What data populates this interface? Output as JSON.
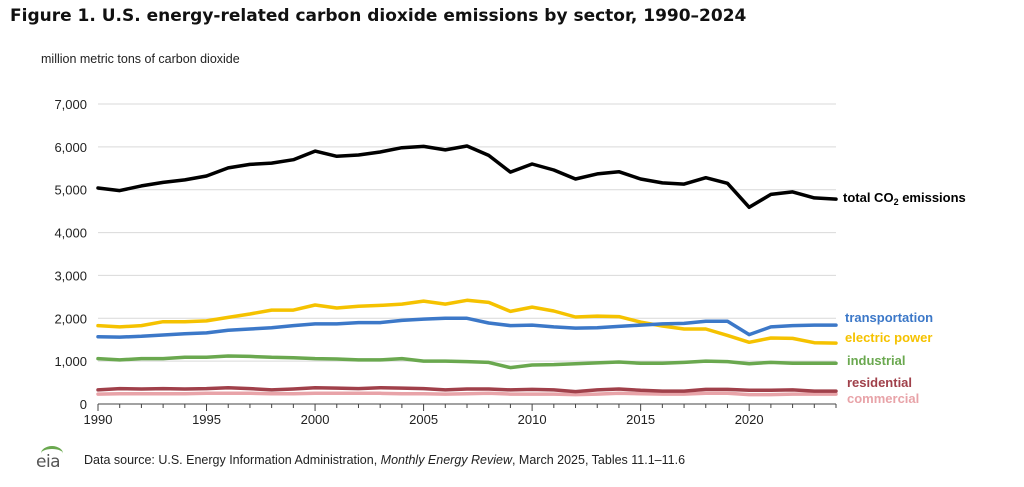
{
  "title": "Figure 1. U.S. energy-related carbon dioxide emissions by sector, 1990–2024",
  "unit_label": "million metric tons of carbon dioxide",
  "source": {
    "prefix": "Data source: U.S. Energy Information Administration, ",
    "publication": "Monthly Energy Review",
    "suffix": ", March 2025, Tables 11.1–11.6"
  },
  "logo_text": "eia",
  "chart_data": {
    "type": "line",
    "title": "Figure 1. U.S. energy-related carbon dioxide emissions by sector, 1990–2024",
    "xlabel": "",
    "ylabel": "million metric tons of carbon dioxide",
    "xlim": [
      1990,
      2024
    ],
    "ylim": [
      0,
      7000
    ],
    "x_ticks": [
      "1990",
      "1995",
      "2000",
      "2005",
      "2010",
      "2015",
      "2020"
    ],
    "x_tick_values": [
      1990,
      1995,
      2000,
      2005,
      2010,
      2015,
      2020
    ],
    "y_ticks": [
      "0",
      "1,000",
      "2,000",
      "3,000",
      "4,000",
      "5,000",
      "6,000",
      "7,000"
    ],
    "y_tick_values": [
      0,
      1000,
      2000,
      3000,
      4000,
      5000,
      6000,
      7000
    ],
    "grid": "horizontal",
    "legend": "inline-right",
    "x": [
      1990,
      1991,
      1992,
      1993,
      1994,
      1995,
      1996,
      1997,
      1998,
      1999,
      2000,
      2001,
      2002,
      2003,
      2004,
      2005,
      2006,
      2007,
      2008,
      2009,
      2010,
      2011,
      2012,
      2013,
      2014,
      2015,
      2016,
      2017,
      2018,
      2019,
      2020,
      2021,
      2022,
      2023,
      2024
    ],
    "series": [
      {
        "name": "total CO",
        "name_sub": "2",
        "name_suffix": " emissions",
        "color": "#000000",
        "values": [
          5040,
          4980,
          5090,
          5170,
          5230,
          5320,
          5510,
          5590,
          5620,
          5700,
          5900,
          5780,
          5810,
          5880,
          5980,
          6010,
          5930,
          6020,
          5800,
          5410,
          5600,
          5460,
          5250,
          5370,
          5420,
          5250,
          5160,
          5130,
          5280,
          5150,
          4590,
          4890,
          4950,
          4810,
          4780
        ]
      },
      {
        "name": "transportation",
        "color": "#3c78c8",
        "values": [
          1570,
          1560,
          1580,
          1610,
          1640,
          1660,
          1720,
          1750,
          1780,
          1830,
          1870,
          1870,
          1900,
          1900,
          1950,
          1980,
          2000,
          2000,
          1890,
          1830,
          1840,
          1800,
          1770,
          1780,
          1810,
          1840,
          1870,
          1880,
          1930,
          1930,
          1620,
          1800,
          1830,
          1840,
          1840
        ]
      },
      {
        "name": "electric power",
        "color": "#f5c200",
        "values": [
          1830,
          1800,
          1830,
          1920,
          1920,
          1940,
          2020,
          2100,
          2190,
          2190,
          2310,
          2240,
          2280,
          2300,
          2330,
          2400,
          2330,
          2420,
          2370,
          2160,
          2260,
          2170,
          2030,
          2050,
          2040,
          1910,
          1820,
          1750,
          1750,
          1600,
          1440,
          1540,
          1530,
          1430,
          1420
        ]
      },
      {
        "name": "industrial",
        "color": "#6aa84f",
        "values": [
          1060,
          1030,
          1060,
          1060,
          1090,
          1090,
          1120,
          1110,
          1090,
          1080,
          1060,
          1050,
          1030,
          1030,
          1060,
          1000,
          1000,
          990,
          970,
          850,
          910,
          920,
          940,
          960,
          980,
          950,
          950,
          970,
          1000,
          990,
          940,
          970,
          950,
          950,
          950
        ]
      },
      {
        "name": "residential",
        "color": "#a0404a",
        "values": [
          330,
          360,
          350,
          360,
          350,
          360,
          380,
          360,
          330,
          350,
          380,
          370,
          360,
          380,
          370,
          360,
          330,
          350,
          350,
          330,
          340,
          330,
          290,
          330,
          350,
          320,
          300,
          300,
          340,
          340,
          320,
          320,
          330,
          300,
          300
        ]
      },
      {
        "name": "commercial",
        "color": "#e8a3a8",
        "values": [
          230,
          240,
          240,
          240,
          240,
          250,
          250,
          250,
          240,
          240,
          250,
          250,
          250,
          250,
          240,
          240,
          230,
          240,
          250,
          230,
          230,
          230,
          220,
          230,
          250,
          240,
          230,
          230,
          250,
          250,
          220,
          220,
          230,
          230,
          230
        ]
      }
    ]
  }
}
